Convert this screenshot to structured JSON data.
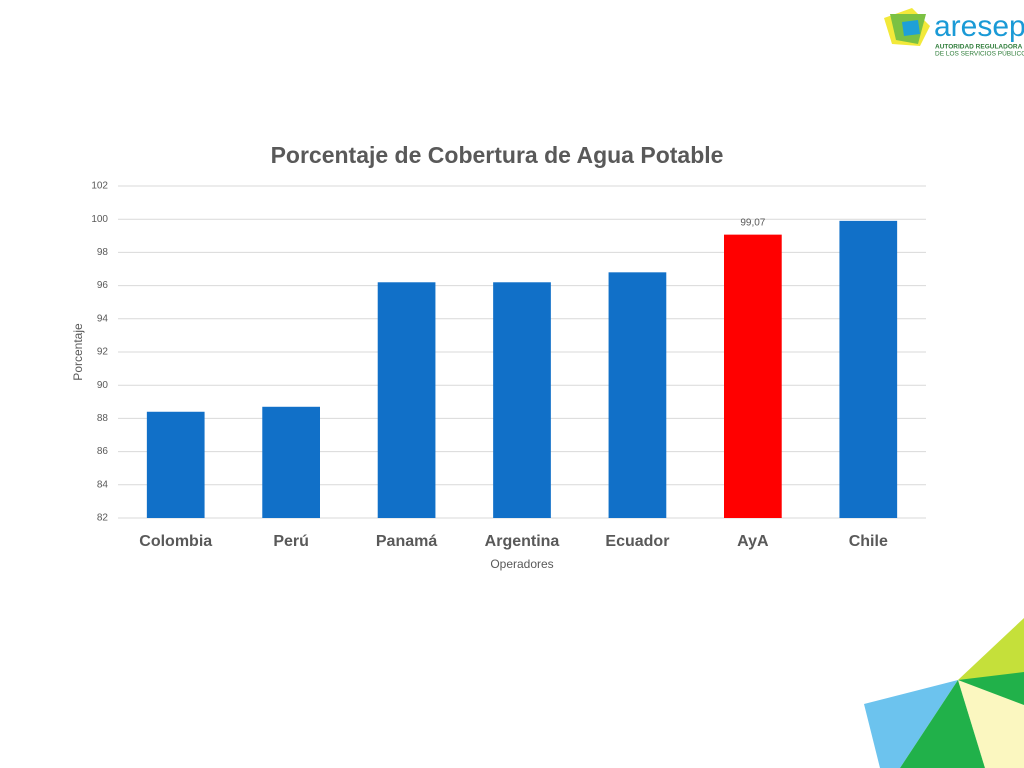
{
  "logo": {
    "name": "aresep",
    "tagline_1": "AUTORIDAD REGULADORA",
    "tagline_2": "DE LOS SERVICIOS PÚBLICOS"
  },
  "chart_data": {
    "type": "bar",
    "title": "Porcentaje de Cobertura de Agua Potable",
    "x_label": "Operadores",
    "y_label": "Porcentaje",
    "categories": [
      "Colombia",
      "Perú",
      "Panamá",
      "Argentina",
      "Ecuador",
      "AyA",
      "Chile"
    ],
    "values": [
      88.4,
      88.7,
      96.2,
      96.2,
      96.8,
      99.07,
      99.9
    ],
    "value_labels": [
      null,
      null,
      null,
      null,
      null,
      "99,07",
      null
    ],
    "colors": [
      "#1170c8",
      "#1170c8",
      "#1170c8",
      "#1170c8",
      "#1170c8",
      "#ff0000",
      "#1170c8"
    ],
    "ylim": [
      82,
      102
    ],
    "yticks": [
      82,
      84,
      86,
      88,
      90,
      92,
      94,
      96,
      98,
      100,
      102
    ],
    "grid": true
  }
}
